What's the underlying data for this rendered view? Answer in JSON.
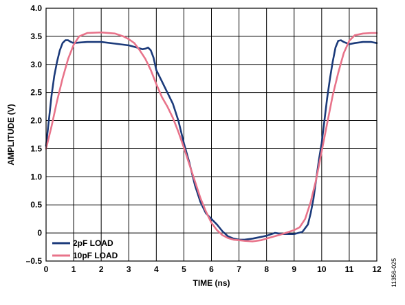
{
  "chart_data": {
    "type": "line",
    "title": "",
    "xlabel": "TIME (ns)",
    "ylabel": "AMPLITUDE (V)",
    "xlim": [
      0,
      12
    ],
    "ylim": [
      -0.5,
      4.0
    ],
    "xticks": [
      0,
      1,
      2,
      3,
      4,
      5,
      6,
      7,
      8,
      9,
      10,
      11,
      12
    ],
    "xtick_labels": [
      "0",
      "1",
      "2",
      "3",
      "4",
      "5",
      "6",
      "7",
      "8",
      "9",
      "10",
      "11",
      "12"
    ],
    "yticks": [
      -0.5,
      0,
      0.5,
      1.0,
      1.5,
      2.0,
      2.5,
      3.0,
      3.5,
      4.0
    ],
    "ytick_labels": [
      "–0.5",
      "0",
      "0.5",
      "1.0",
      "1.5",
      "2.0",
      "2.5",
      "3.0",
      "3.5",
      "4.0"
    ],
    "grid": true,
    "legend_position": "bottom-left",
    "figure_id": "11356-025",
    "series": [
      {
        "name": "2pF LOAD",
        "color": "#1b3a7a",
        "x": [
          0,
          0.1,
          0.2,
          0.3,
          0.4,
          0.5,
          0.6,
          0.7,
          0.8,
          0.9,
          1.0,
          1.2,
          1.5,
          2.0,
          2.5,
          3.0,
          3.3,
          3.5,
          3.6,
          3.7,
          3.8,
          3.9,
          4.0,
          4.2,
          4.4,
          4.6,
          4.8,
          5.0,
          5.2,
          5.4,
          5.6,
          5.8,
          6.0,
          6.2,
          6.4,
          6.6,
          6.8,
          7.0,
          7.2,
          7.5,
          8.0,
          8.3,
          8.6,
          9.0,
          9.3,
          9.5,
          9.6,
          9.7,
          9.8,
          9.9,
          10.0,
          10.1,
          10.2,
          10.3,
          10.4,
          10.5,
          10.6,
          10.7,
          10.8,
          11.0,
          11.2,
          11.5,
          11.8,
          12.0
        ],
        "y": [
          1.55,
          2.0,
          2.45,
          2.8,
          3.05,
          3.25,
          3.38,
          3.43,
          3.43,
          3.4,
          3.38,
          3.39,
          3.4,
          3.4,
          3.37,
          3.34,
          3.3,
          3.27,
          3.28,
          3.3,
          3.25,
          3.12,
          2.9,
          2.7,
          2.5,
          2.3,
          2.0,
          1.6,
          1.25,
          0.85,
          0.55,
          0.35,
          0.25,
          0.15,
          0.03,
          -0.06,
          -0.1,
          -0.12,
          -0.12,
          -0.1,
          -0.05,
          0.0,
          -0.02,
          -0.02,
          0.02,
          0.15,
          0.35,
          0.6,
          0.95,
          1.3,
          1.6,
          2.0,
          2.4,
          2.75,
          3.05,
          3.3,
          3.42,
          3.43,
          3.4,
          3.36,
          3.38,
          3.4,
          3.4,
          3.38
        ]
      },
      {
        "name": "10pF LOAD",
        "color": "#e8738a",
        "x": [
          0,
          0.2,
          0.4,
          0.6,
          0.8,
          1.0,
          1.2,
          1.5,
          2.0,
          2.5,
          2.8,
          3.0,
          3.2,
          3.4,
          3.6,
          3.8,
          4.0,
          4.2,
          4.4,
          4.6,
          4.8,
          5.0,
          5.2,
          5.4,
          5.6,
          5.8,
          6.0,
          6.2,
          6.4,
          6.6,
          6.8,
          7.0,
          7.2,
          7.5,
          7.8,
          8.0,
          8.5,
          9.0,
          9.2,
          9.4,
          9.6,
          9.8,
          10.0,
          10.2,
          10.4,
          10.6,
          10.8,
          11.0,
          11.2,
          11.5,
          11.8,
          12.0
        ],
        "y": [
          1.5,
          1.9,
          2.35,
          2.75,
          3.1,
          3.35,
          3.5,
          3.56,
          3.57,
          3.55,
          3.5,
          3.45,
          3.38,
          3.25,
          3.1,
          2.9,
          2.65,
          2.42,
          2.25,
          2.05,
          1.8,
          1.52,
          1.22,
          0.92,
          0.62,
          0.38,
          0.18,
          0.05,
          -0.04,
          -0.09,
          -0.12,
          -0.13,
          -0.14,
          -0.15,
          -0.13,
          -0.1,
          -0.03,
          0.05,
          0.1,
          0.25,
          0.55,
          0.95,
          1.45,
          1.95,
          2.45,
          2.85,
          3.2,
          3.42,
          3.52,
          3.55,
          3.56,
          3.56
        ]
      }
    ]
  }
}
